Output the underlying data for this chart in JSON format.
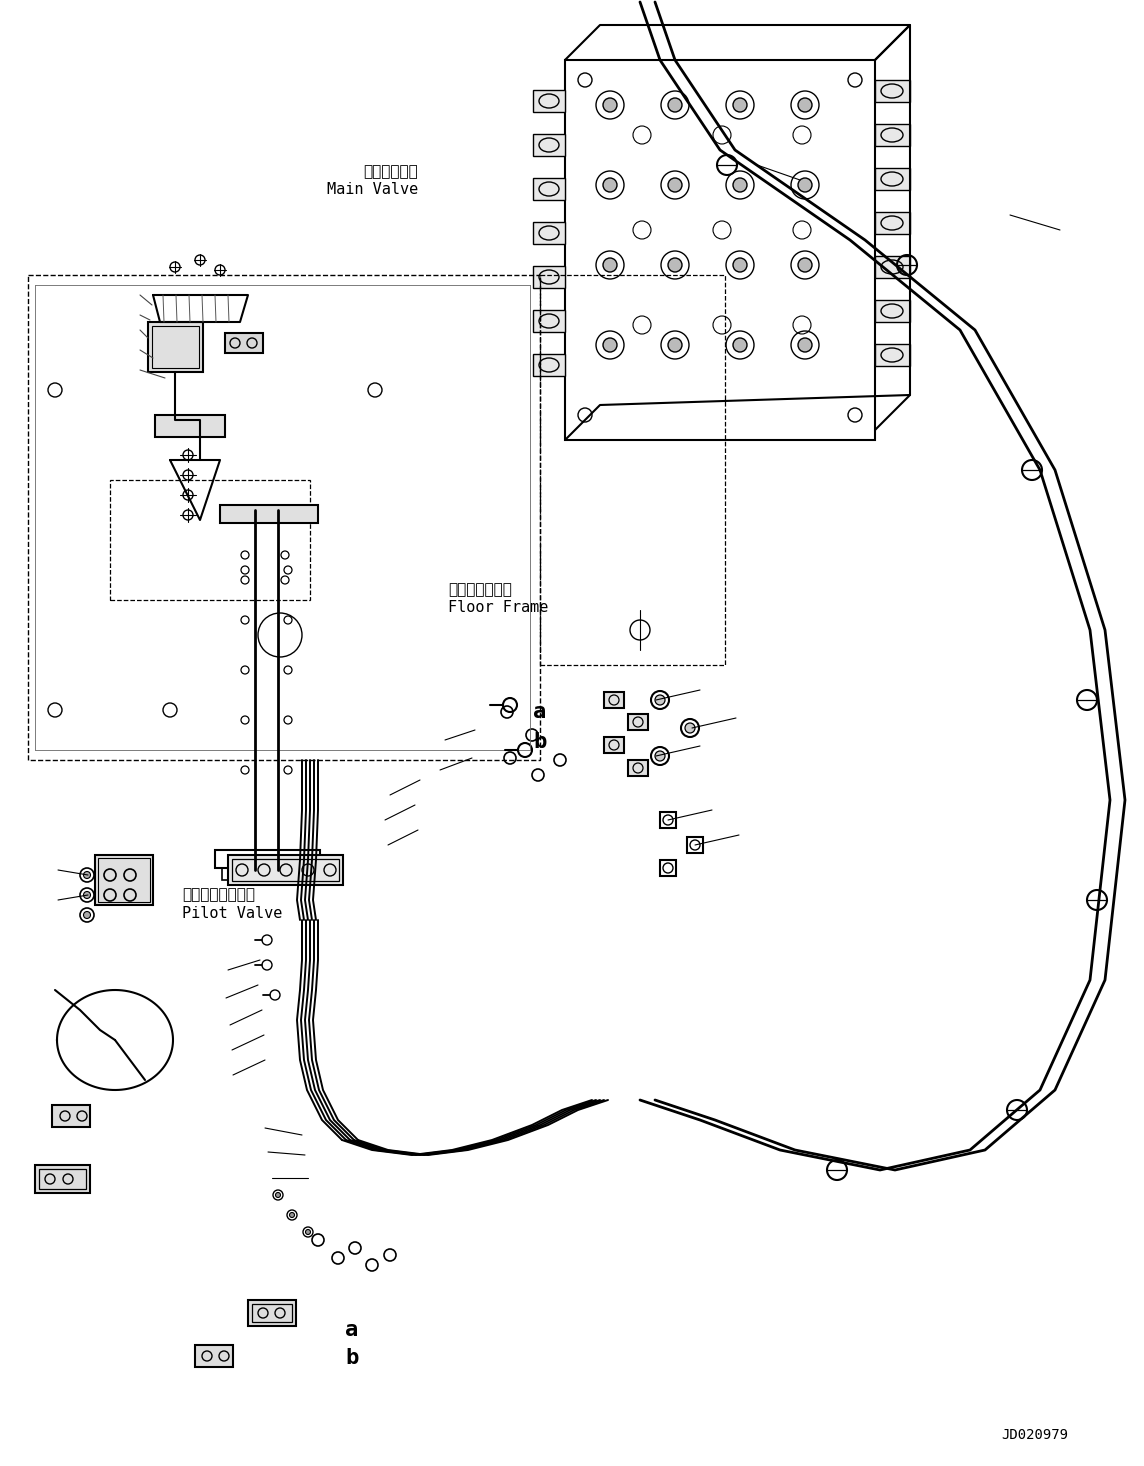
{
  "title": "",
  "background_color": "#ffffff",
  "line_color": "#000000",
  "fig_width": 11.44,
  "fig_height": 14.66,
  "dpi": 100,
  "labels": {
    "main_valve_jp": "メインバルブ",
    "main_valve_en": "Main Valve",
    "floor_frame_jp": "フロアフレーム",
    "floor_frame_en": "Floor Frame",
    "pilot_valve_jp": "パイロットバルブ",
    "pilot_valve_en": "Pilot Valve",
    "code": "JD020979",
    "label_a1": "a",
    "label_b1": "b",
    "label_a2": "a",
    "label_b2": "b"
  }
}
